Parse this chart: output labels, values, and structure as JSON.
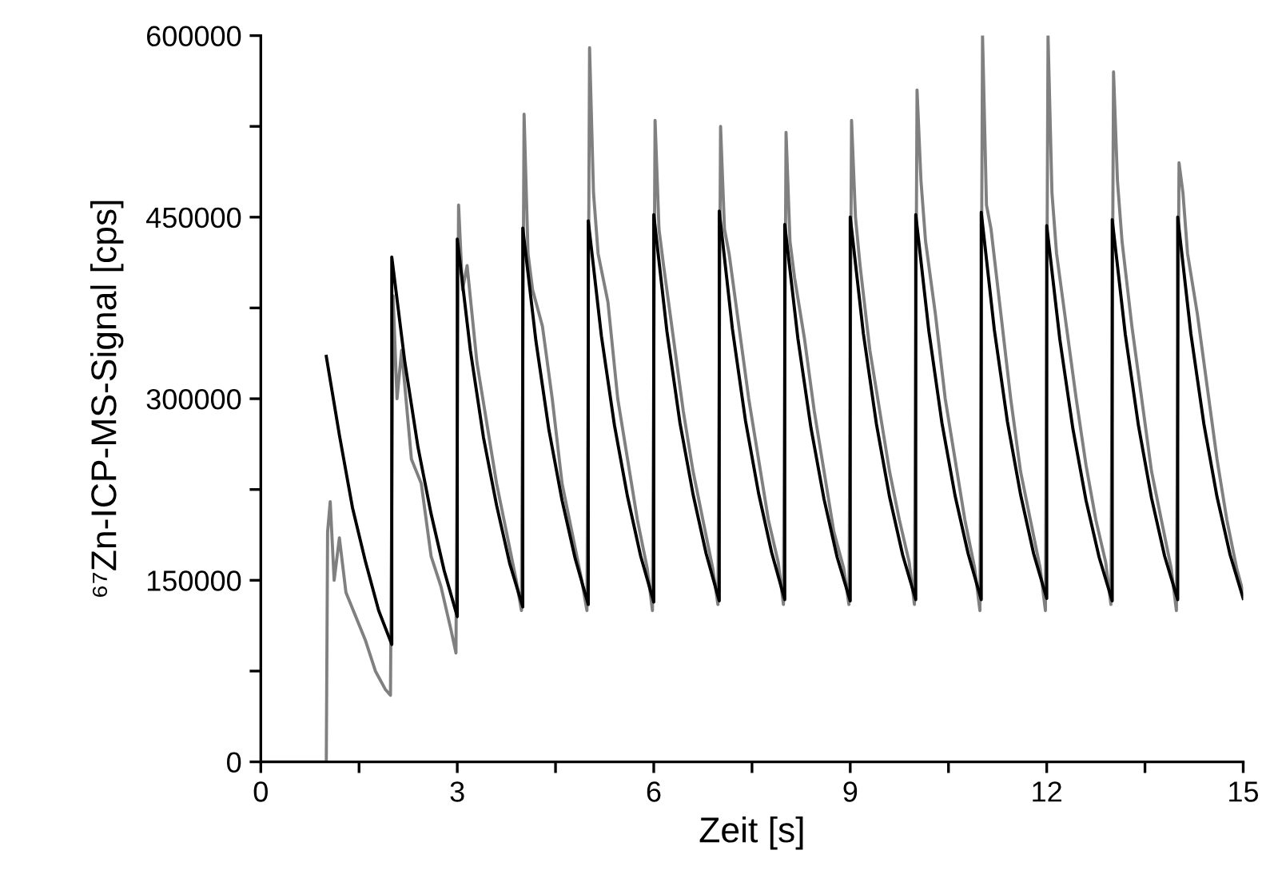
{
  "chart_data": {
    "type": "line",
    "xlabel": "Zeit [s]",
    "ylabel": "⁶⁷Zn-ICP-MS-Signal [cps]",
    "xlim": [
      0,
      15
    ],
    "ylim": [
      0,
      600000
    ],
    "xticks": [
      0,
      {
        "value": 1.5,
        "label": null
      },
      3,
      {
        "value": 4.5,
        "label": null
      },
      6,
      {
        "value": 7.5,
        "label": null
      },
      9,
      {
        "value": 10.5,
        "label": null
      },
      12,
      {
        "value": 13.5,
        "label": null
      },
      15
    ],
    "yticks": [
      0,
      {
        "value": 75000,
        "label": null
      },
      150000,
      {
        "value": 225000,
        "label": null
      },
      300000,
      {
        "value": 375000,
        "label": null
      },
      450000,
      {
        "value": 525000,
        "label": null
      },
      600000
    ],
    "grid": false,
    "marker": "none",
    "line_style": "solid",
    "series": [
      {
        "color": "#808080",
        "x": [
          0,
          1,
          1.02,
          1.06,
          1.12,
          1.2,
          1.3,
          1.45,
          1.6,
          1.75,
          1.9,
          1.98,
          2.02,
          2.08,
          2.15,
          2.3,
          2.45,
          2.6,
          2.75,
          2.9,
          2.98,
          3.02,
          3.08,
          3.15,
          3.3,
          3.45,
          3.6,
          3.75,
          3.9,
          3.98,
          4.02,
          4.08,
          4.15,
          4.3,
          4.45,
          4.6,
          4.75,
          4.9,
          4.98,
          5.02,
          5.08,
          5.15,
          5.3,
          5.45,
          5.6,
          5.75,
          5.9,
          5.98,
          6.02,
          6.08,
          6.15,
          6.3,
          6.45,
          6.6,
          6.75,
          6.9,
          6.98,
          7.02,
          7.08,
          7.15,
          7.3,
          7.45,
          7.6,
          7.75,
          7.9,
          7.98,
          8.02,
          8.08,
          8.15,
          8.3,
          8.45,
          8.6,
          8.75,
          8.9,
          8.98,
          9.02,
          9.08,
          9.15,
          9.3,
          9.45,
          9.6,
          9.75,
          9.9,
          9.98,
          10.02,
          10.08,
          10.15,
          10.3,
          10.45,
          10.6,
          10.75,
          10.9,
          10.98,
          11.02,
          11.08,
          11.15,
          11.3,
          11.45,
          11.6,
          11.75,
          11.9,
          11.98,
          12.02,
          12.08,
          12.15,
          12.3,
          12.45,
          12.6,
          12.75,
          12.9,
          12.98,
          13.02,
          13.08,
          13.15,
          13.3,
          13.45,
          13.6,
          13.75,
          13.9,
          13.98,
          14.02,
          14.08,
          14.15,
          14.3,
          14.45,
          14.6,
          14.75,
          14.9,
          15
        ],
        "values": [
          0,
          0,
          190000,
          215000,
          150000,
          185000,
          140000,
          120000,
          100000,
          75000,
          60000,
          55000,
          385000,
          300000,
          340000,
          250000,
          230000,
          170000,
          145000,
          110000,
          90000,
          460000,
          390000,
          410000,
          330000,
          280000,
          230000,
          190000,
          150000,
          125000,
          535000,
          420000,
          390000,
          360000,
          300000,
          230000,
          190000,
          150000,
          125000,
          590000,
          470000,
          420000,
          380000,
          300000,
          250000,
          200000,
          160000,
          125000,
          530000,
          440000,
          410000,
          350000,
          290000,
          240000,
          200000,
          160000,
          130000,
          525000,
          440000,
          420000,
          360000,
          300000,
          250000,
          200000,
          165000,
          130000,
          520000,
          430000,
          400000,
          350000,
          290000,
          240000,
          190000,
          160000,
          130000,
          530000,
          450000,
          410000,
          340000,
          290000,
          240000,
          200000,
          165000,
          130000,
          555000,
          480000,
          430000,
          370000,
          300000,
          250000,
          200000,
          160000,
          125000,
          600000,
          460000,
          440000,
          370000,
          300000,
          240000,
          200000,
          160000,
          125000,
          600000,
          470000,
          420000,
          360000,
          300000,
          245000,
          200000,
          165000,
          130000,
          570000,
          480000,
          430000,
          360000,
          300000,
          240000,
          200000,
          160000,
          125000,
          495000,
          470000,
          420000,
          370000,
          310000,
          250000,
          200000,
          160000,
          140000
        ]
      },
      {
        "color": "#000000",
        "x": [
          1,
          1.2,
          1.4,
          1.6,
          1.8,
          2,
          2,
          2.2,
          2.4,
          2.6,
          2.8,
          3,
          3,
          3.2,
          3.4,
          3.6,
          3.8,
          4,
          4,
          4.2,
          4.4,
          4.6,
          4.8,
          5,
          5,
          5.2,
          5.4,
          5.6,
          5.8,
          6,
          6,
          6.2,
          6.4,
          6.6,
          6.8,
          7,
          7,
          7.2,
          7.4,
          7.6,
          7.8,
          8,
          8,
          8.2,
          8.4,
          8.6,
          8.8,
          9,
          9,
          9.2,
          9.4,
          9.6,
          9.8,
          10,
          10,
          10.2,
          10.4,
          10.6,
          10.8,
          11,
          11,
          11.2,
          11.4,
          11.6,
          11.8,
          12,
          12,
          12.2,
          12.4,
          12.6,
          12.8,
          13,
          13,
          13.2,
          13.4,
          13.6,
          13.8,
          14,
          14,
          14.2,
          14.4,
          14.6,
          14.8,
          15
        ],
        "values": [
          335000,
          270000,
          210000,
          165000,
          125000,
          97000,
          417000,
          330000,
          260000,
          205000,
          158000,
          120000,
          432000,
          340000,
          268000,
          212000,
          164000,
          128000,
          441000,
          348000,
          274000,
          216000,
          168000,
          130000,
          447000,
          352000,
          278000,
          219000,
          170000,
          132000,
          452000,
          356000,
          280000,
          221000,
          172000,
          133000,
          455000,
          358000,
          282000,
          222000,
          173000,
          134000,
          444000,
          350000,
          276000,
          217000,
          169000,
          133000,
          450000,
          354000,
          279000,
          219000,
          171000,
          134000,
          452000,
          356000,
          280000,
          220000,
          172000,
          134000,
          454000,
          357000,
          281000,
          221000,
          172000,
          135000,
          443000,
          349000,
          275000,
          216000,
          169000,
          133000,
          448000,
          353000,
          278000,
          218000,
          170000,
          134000,
          450000,
          354000,
          279000,
          219000,
          171000,
          135000
        ]
      }
    ]
  }
}
